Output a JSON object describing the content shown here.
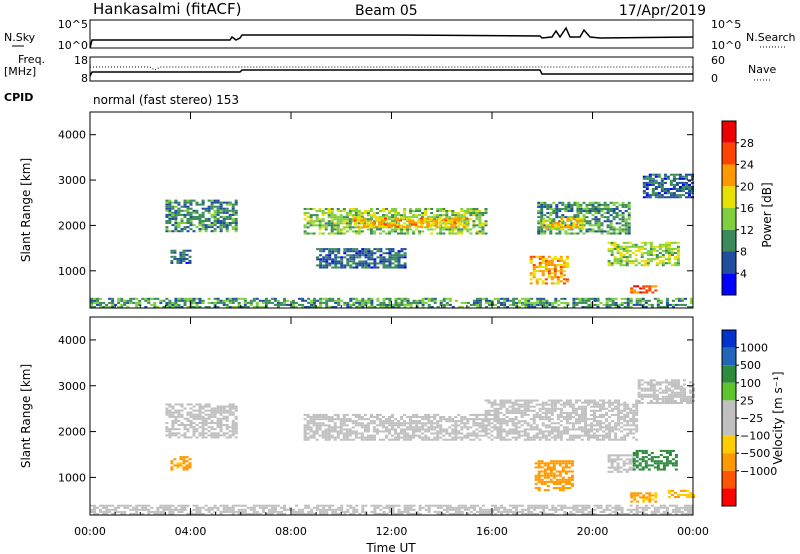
{
  "header": {
    "station": "Hankasalmi (fitACF)",
    "beam": "Beam 05",
    "date": "17/Apr/2019"
  },
  "strip_labels": {
    "nsky": "N.Sky",
    "nsky_ticks": [
      "10^5",
      "10^0"
    ],
    "nsearch": "N.Search",
    "nsearch_ticks": [
      "10^5",
      "10^0"
    ],
    "freq_top": "Freq.",
    "freq_unit": "[MHz]",
    "freq_ticks": [
      "18",
      "8"
    ],
    "nave": "Nave",
    "nave_ticks": [
      "60",
      "0"
    ],
    "cpid": "CPID",
    "cpid_text": "normal (fast stereo) 153"
  },
  "colors": {
    "power": [
      "#0000ff",
      "#1f4e9e",
      "#3a8a5a",
      "#7fcf3f",
      "#e8e000",
      "#ff9900",
      "#ff4400",
      "#ee0000"
    ],
    "velocity": [
      "#ff0000",
      "#ff5500",
      "#ff9900",
      "#ffcc00",
      "#c0c0c0",
      "#c0c0c0",
      "#5ec42e",
      "#2e8b3e",
      "#2266bb",
      "#0033cc"
    ],
    "ground_scatter": "#c0c0c0"
  },
  "chart_data": [
    {
      "type": "heatmap",
      "name": "power",
      "ylabel": "Slant Range [km]",
      "xlabel": "Time UT",
      "xlim": [
        0,
        24
      ],
      "ylim": [
        180,
        4500
      ],
      "x_ticks": [
        "00:00",
        "04:00",
        "08:00",
        "12:00",
        "16:00",
        "20:00",
        "00:00"
      ],
      "y_ticks": [
        1000,
        2000,
        3000,
        4000
      ],
      "colorbar": {
        "label": "Power [dB]",
        "ticks": [
          "4",
          "8",
          "12",
          "16",
          "20",
          "24",
          "28"
        ],
        "range": [
          0,
          30
        ]
      },
      "regions": [
        {
          "t0": 3.0,
          "t1": 5.8,
          "r0": 1850,
          "r1": 2550,
          "value": 9
        },
        {
          "t0": 3.2,
          "t1": 4.0,
          "r0": 1150,
          "r1": 1450,
          "value": 7
        },
        {
          "t0": 8.5,
          "t1": 15.7,
          "r0": 1800,
          "r1": 2350,
          "value": 13
        },
        {
          "t0": 10.5,
          "t1": 15.0,
          "r0": 1950,
          "r1": 2150,
          "value": 19
        },
        {
          "t0": 9.0,
          "t1": 12.5,
          "r0": 1050,
          "r1": 1500,
          "value": 7
        },
        {
          "t0": 17.8,
          "t1": 21.5,
          "r0": 1800,
          "r1": 2500,
          "value": 10
        },
        {
          "t0": 18.0,
          "t1": 19.6,
          "r0": 1900,
          "r1": 2150,
          "value": 18
        },
        {
          "t0": 17.5,
          "t1": 19.0,
          "r0": 700,
          "r1": 1300,
          "value": 20
        },
        {
          "t0": 20.6,
          "t1": 23.4,
          "r0": 1100,
          "r1": 1600,
          "value": 14
        },
        {
          "t0": 21.5,
          "t1": 22.5,
          "r0": 500,
          "r1": 650,
          "value": 24
        },
        {
          "t0": 22.0,
          "t1": 24.0,
          "r0": 2600,
          "r1": 3100,
          "value": 7
        },
        {
          "t0": 0.0,
          "t1": 24.0,
          "r0": 180,
          "r1": 400,
          "value": 10
        }
      ]
    },
    {
      "type": "heatmap",
      "name": "velocity",
      "ylabel": "Slant Range [km]",
      "xlabel": "Time UT",
      "xlim": [
        0,
        24
      ],
      "ylim": [
        180,
        4500
      ],
      "x_ticks": [
        "00:00",
        "04:00",
        "08:00",
        "12:00",
        "16:00",
        "20:00",
        "00:00"
      ],
      "y_ticks": [
        1000,
        2000,
        3000,
        4000
      ],
      "colorbar": {
        "label": "Velocity [m s⁻¹]",
        "ticks": [
          "1000",
          "500",
          "100",
          "25",
          "−25",
          "−100",
          "−500",
          "−1000"
        ]
      },
      "regions": [
        {
          "t0": 3.0,
          "t1": 5.8,
          "r0": 1850,
          "r1": 2600,
          "value": 0
        },
        {
          "t0": 8.5,
          "t1": 15.7,
          "r0": 1800,
          "r1": 2350,
          "value": 0
        },
        {
          "t0": 15.7,
          "t1": 21.8,
          "r0": 1800,
          "r1": 2700,
          "value": 0
        },
        {
          "t0": 21.8,
          "t1": 24.0,
          "r0": 2600,
          "r1": 3100,
          "value": 0
        },
        {
          "t0": 3.2,
          "t1": 4.0,
          "r0": 1150,
          "r1": 1450,
          "value": -150
        },
        {
          "t0": 17.7,
          "t1": 19.2,
          "r0": 700,
          "r1": 1350,
          "value": -350
        },
        {
          "t0": 20.6,
          "t1": 21.6,
          "r0": 1100,
          "r1": 1500,
          "value": 0
        },
        {
          "t0": 21.6,
          "t1": 23.4,
          "r0": 1150,
          "r1": 1600,
          "value": 200
        },
        {
          "t0": 21.5,
          "t1": 22.5,
          "r0": 450,
          "r1": 650,
          "value": -120
        },
        {
          "t0": 23.0,
          "t1": 24.0,
          "r0": 550,
          "r1": 700,
          "value": -90
        },
        {
          "t0": 0.0,
          "t1": 24.0,
          "r0": 180,
          "r1": 400,
          "value": 0
        }
      ]
    }
  ]
}
